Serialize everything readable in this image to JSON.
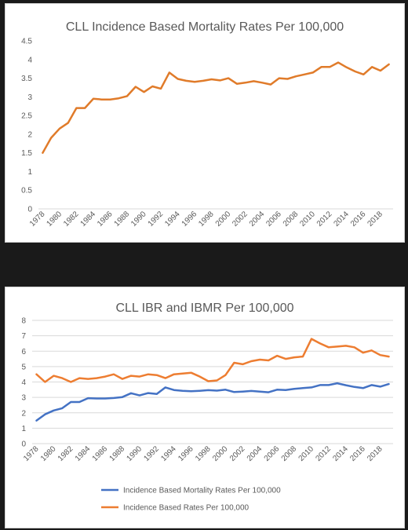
{
  "chart_data": [
    {
      "type": "line",
      "title": "CLL Incidence Based Mortality Rates Per 100,000",
      "xlabel": "",
      "ylabel": "",
      "x": [
        1978,
        1979,
        1980,
        1981,
        1982,
        1983,
        1984,
        1985,
        1986,
        1987,
        1988,
        1989,
        1990,
        1991,
        1992,
        1993,
        1994,
        1995,
        1996,
        1997,
        1998,
        1999,
        2000,
        2001,
        2002,
        2003,
        2004,
        2005,
        2006,
        2007,
        2008,
        2009,
        2010,
        2011,
        2012,
        2013,
        2014,
        2015,
        2016,
        2017,
        2018,
        2019
      ],
      "x_tick_labels": [
        "1978",
        "1980",
        "1982",
        "1984",
        "1986",
        "1988",
        "1990",
        "1992",
        "1994",
        "1996",
        "1998",
        "2000",
        "2002",
        "2004",
        "2006",
        "2008",
        "2010",
        "2012",
        "2014",
        "2016",
        "2018"
      ],
      "ylim": [
        0,
        4.5
      ],
      "y_ticks": [
        "0",
        "0.5",
        "1",
        "1.5",
        "2",
        "2.5",
        "3",
        "3.5",
        "4",
        "4.5"
      ],
      "grid": false,
      "series": [
        {
          "color": "#e07b2a",
          "values": [
            1.5,
            1.9,
            2.15,
            2.3,
            2.7,
            2.7,
            2.95,
            2.93,
            2.93,
            2.96,
            3.02,
            3.27,
            3.13,
            3.28,
            3.22,
            3.65,
            3.48,
            3.43,
            3.4,
            3.43,
            3.47,
            3.44,
            3.5,
            3.35,
            3.38,
            3.42,
            3.38,
            3.33,
            3.5,
            3.48,
            3.55,
            3.6,
            3.65,
            3.8,
            3.8,
            3.92,
            3.79,
            3.68,
            3.6,
            3.8,
            3.7,
            3.87
          ]
        }
      ]
    },
    {
      "type": "line",
      "title": "CLL IBR and IBMR Per 100,000",
      "xlabel": "",
      "ylabel": "",
      "x": [
        1978,
        1979,
        1980,
        1981,
        1982,
        1983,
        1984,
        1985,
        1986,
        1987,
        1988,
        1989,
        1990,
        1991,
        1992,
        1993,
        1994,
        1995,
        1996,
        1997,
        1998,
        1999,
        2000,
        2001,
        2002,
        2003,
        2004,
        2005,
        2006,
        2007,
        2008,
        2009,
        2010,
        2011,
        2012,
        2013,
        2014,
        2015,
        2016,
        2017,
        2018,
        2019
      ],
      "x_tick_labels": [
        "1978",
        "1980",
        "1982",
        "1984",
        "1986",
        "1988",
        "1990",
        "1992",
        "1994",
        "1996",
        "1998",
        "2000",
        "2002",
        "2004",
        "2006",
        "2008",
        "2010",
        "2012",
        "2014",
        "2016",
        "2018"
      ],
      "ylim": [
        0,
        8
      ],
      "y_ticks": [
        "0",
        "1",
        "2",
        "3",
        "4",
        "5",
        "6",
        "7",
        "8"
      ],
      "grid": true,
      "legend": "bottom",
      "series": [
        {
          "name": "Incidence Based Mortality Rates Per 100,000",
          "color": "#4472c4",
          "values": [
            1.5,
            1.9,
            2.15,
            2.3,
            2.7,
            2.7,
            2.95,
            2.93,
            2.93,
            2.96,
            3.02,
            3.27,
            3.13,
            3.28,
            3.22,
            3.65,
            3.48,
            3.43,
            3.4,
            3.43,
            3.47,
            3.44,
            3.5,
            3.35,
            3.38,
            3.42,
            3.38,
            3.33,
            3.5,
            3.48,
            3.55,
            3.6,
            3.65,
            3.8,
            3.8,
            3.92,
            3.79,
            3.68,
            3.6,
            3.8,
            3.7,
            3.87
          ]
        },
        {
          "name": "Incidence Based Rates Per 100,000",
          "color": "#ed7d31",
          "values": [
            4.5,
            4.0,
            4.4,
            4.25,
            4.0,
            4.25,
            4.2,
            4.25,
            4.35,
            4.5,
            4.2,
            4.4,
            4.35,
            4.5,
            4.45,
            4.25,
            4.5,
            4.55,
            4.6,
            4.35,
            4.05,
            4.1,
            4.45,
            5.25,
            5.15,
            5.35,
            5.45,
            5.4,
            5.7,
            5.5,
            5.6,
            5.65,
            6.8,
            6.5,
            6.25,
            6.3,
            6.35,
            6.25,
            5.9,
            6.05,
            5.75,
            5.65
          ]
        }
      ]
    }
  ]
}
